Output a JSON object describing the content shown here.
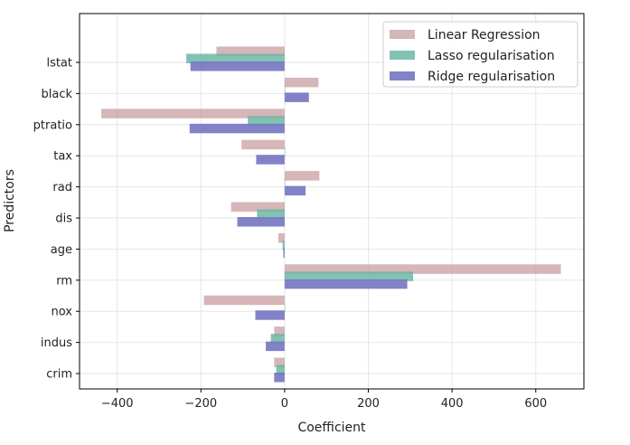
{
  "chart_data": {
    "type": "bar",
    "orientation": "horizontal",
    "title": "",
    "xlabel": "Coefficient",
    "ylabel": "Predictors",
    "xlim": [
      -490,
      715
    ],
    "xticks": [
      -400,
      -200,
      0,
      200,
      400,
      600
    ],
    "xtick_labels": [
      "−400",
      "−200",
      "0",
      "200",
      "400",
      "600"
    ],
    "grid": true,
    "legend_position": "upper right",
    "categories": [
      "crim",
      "indus",
      "nox",
      "rm",
      "age",
      "dis",
      "rad",
      "tax",
      "ptratio",
      "black",
      "lstat"
    ],
    "series": [
      {
        "name": "Linear Regression",
        "color": "#c89ea0",
        "values": [
          -25,
          -25,
          -193,
          660,
          -15,
          -128,
          83,
          -103,
          -438,
          81,
          -163
        ]
      },
      {
        "name": "Lasso regularisation",
        "color": "#67b5a2",
        "values": [
          -20,
          -33,
          0,
          307,
          -5,
          -66,
          0,
          0,
          -88,
          0,
          -235
        ]
      },
      {
        "name": "Ridge regularisation",
        "color": "#7777c2",
        "values": [
          -25,
          -45,
          -70,
          293,
          -3,
          -113,
          50,
          -68,
          -227,
          58,
          -225
        ]
      }
    ]
  }
}
